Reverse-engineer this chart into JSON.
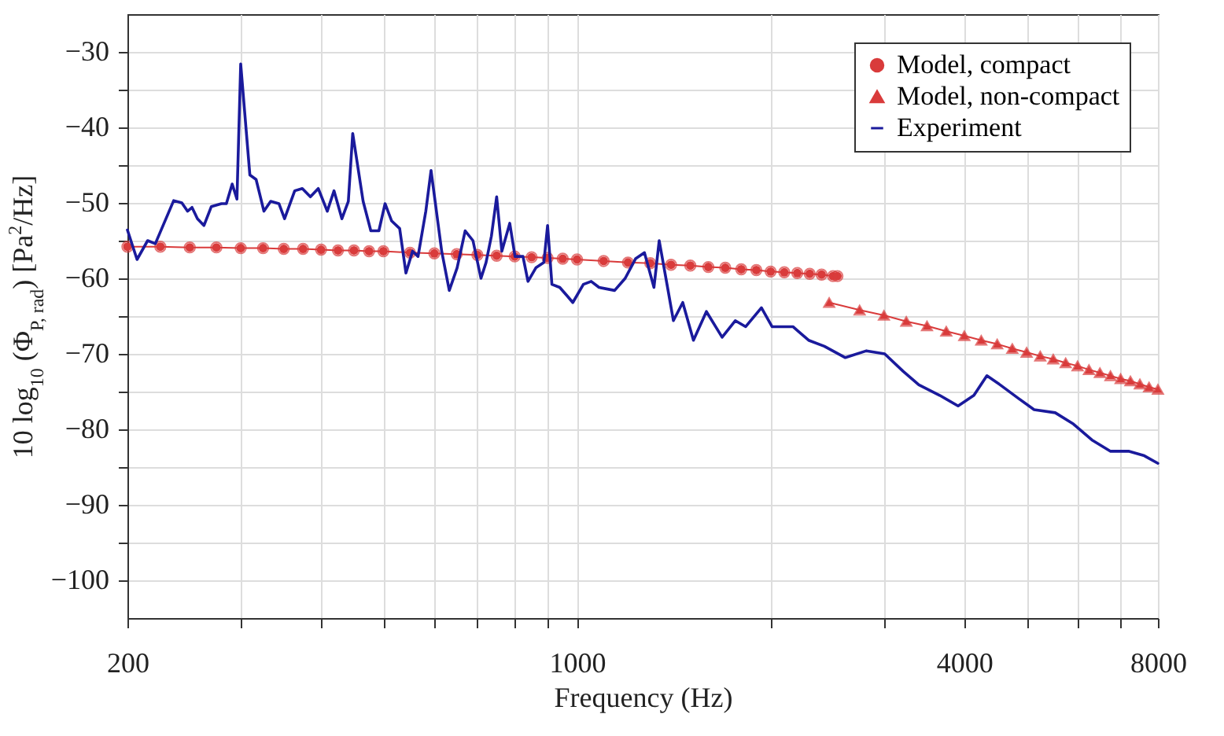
{
  "chart_data": {
    "type": "line",
    "xlabel": "Frequency (Hz)",
    "ylabel": "10 log$_{10}$ (Φ$_{P, rad}$)  [Pa$^{2}$/Hz]",
    "log": "x",
    "grid": true,
    "legend": "top right",
    "xlim": [
      200,
      8000
    ],
    "xticks": [
      200,
      {
        "value": 300,
        "label": null
      },
      {
        "value": 400,
        "label": null
      },
      {
        "value": 500,
        "label": null
      },
      {
        "value": 600,
        "label": null
      },
      {
        "value": 700,
        "label": null
      },
      {
        "value": 800,
        "label": null
      },
      {
        "value": 900,
        "label": null
      },
      1000,
      {
        "value": 2000,
        "label": null
      },
      {
        "value": 3000,
        "label": null
      },
      4000,
      {
        "value": 5000,
        "label": null
      },
      {
        "value": 6000,
        "label": null
      },
      {
        "value": 7000,
        "label": null
      },
      8000
    ],
    "ylim": [
      -105,
      -25
    ],
    "yticks": [
      -100,
      {
        "value": -95,
        "label": null
      },
      -90,
      {
        "value": -85,
        "label": null
      },
      -80,
      {
        "value": -75,
        "label": null
      },
      -70,
      {
        "value": -65,
        "label": null
      },
      -60,
      {
        "value": -55,
        "label": null
      },
      -50,
      {
        "value": -45,
        "label": null
      },
      -40,
      {
        "value": -35,
        "label": null
      },
      -30
    ],
    "series": [
      {
        "name": "Model, compact",
        "color": "#d93b3b",
        "marker": "circle",
        "x": [
          200,
          225,
          250,
          275,
          300,
          325,
          350,
          375,
          400,
          425,
          450,
          475,
          500,
          550,
          600,
          650,
          700,
          750,
          800,
          850,
          900,
          950,
          1000,
          1100,
          1200,
          1300,
          1400,
          1500,
          1600,
          1700,
          1800,
          1900,
          2000,
          2100,
          2200,
          2300,
          2400,
          2500,
          2540
        ],
        "values": [
          -55.8,
          -55.8,
          -55.9,
          -55.9,
          -56.0,
          -56.0,
          -56.1,
          -56.1,
          -56.2,
          -56.3,
          -56.3,
          -56.4,
          -56.4,
          -56.6,
          -56.7,
          -56.8,
          -56.9,
          -57.0,
          -57.1,
          -57.2,
          -57.3,
          -57.4,
          -57.5,
          -57.7,
          -57.9,
          -58.0,
          -58.2,
          -58.3,
          -58.5,
          -58.6,
          -58.8,
          -58.9,
          -59.1,
          -59.2,
          -59.3,
          -59.4,
          -59.5,
          -59.7,
          -59.7
        ]
      },
      {
        "name": "Model, non-compact",
        "color": "#d93b3b",
        "marker": "triangle",
        "x": [
          2466,
          2750,
          3000,
          3250,
          3500,
          3750,
          4000,
          4250,
          4500,
          4750,
          5000,
          5250,
          5500,
          5750,
          6000,
          6250,
          6500,
          6750,
          7000,
          7250,
          7500,
          7750,
          8000
        ],
        "values": [
          -63.2,
          -64.2,
          -64.9,
          -65.7,
          -66.3,
          -67.0,
          -67.6,
          -68.2,
          -68.7,
          -69.3,
          -69.8,
          -70.3,
          -70.7,
          -71.2,
          -71.6,
          -72.1,
          -72.5,
          -72.9,
          -73.3,
          -73.6,
          -74.0,
          -74.4,
          -74.7
        ]
      },
      {
        "name": "Experiment",
        "color": "#1a1a9c",
        "marker": "none",
        "x": [
          200,
          207,
          215,
          221,
          236,
          243,
          248,
          252,
          257,
          263,
          270,
          280,
          285,
          291,
          296,
          300,
          310,
          317,
          326,
          334,
          344,
          351,
          364,
          374,
          385,
          396,
          409,
          419,
          431,
          441,
          448,
          465,
          478,
          492,
          503,
          515,
          530,
          542,
          555,
          566,
          582,
          593,
          616,
          633,
          651,
          670,
          689,
          709,
          722,
          736,
          750,
          764,
          786,
          801,
          824,
          839,
          863,
          888,
          900,
          914,
          940,
          967,
          985,
          1023,
          1052,
          1082,
          1144,
          1188,
          1233,
          1273,
          1317,
          1342,
          1380,
          1412,
          1460,
          1517,
          1589,
          1681,
          1762,
          1829,
          1935,
          2010,
          2166,
          2291,
          2424,
          2613,
          2818,
          3008,
          3213,
          3399,
          3663,
          3912,
          4140,
          4337,
          4547,
          4855,
          5136,
          5539,
          5913,
          6315,
          6745,
          7201,
          7619,
          8000
        ],
        "values": [
          -53.6,
          -57.5,
          -55,
          -55.4,
          -49.7,
          -50,
          -51.1,
          -50.6,
          -52.1,
          -53,
          -50.5,
          -50.1,
          -50.1,
          -47.5,
          -49.5,
          -31.6,
          -46.3,
          -46.9,
          -51.1,
          -49.8,
          -50.1,
          -52.1,
          -48.4,
          -48.1,
          -49.2,
          -48.1,
          -51.1,
          -48.4,
          -52.1,
          -49.8,
          -40.8,
          -49.8,
          -53.7,
          -53.7,
          -50.1,
          -52.4,
          -53.4,
          -59.3,
          -56.4,
          -57.1,
          -51.1,
          -45.7,
          -56.4,
          -61.6,
          -58.6,
          -53.7,
          -55,
          -60,
          -57.9,
          -54.4,
          -49.2,
          -56.4,
          -52.7,
          -57.1,
          -57.1,
          -60.4,
          -58.6,
          -57.9,
          -53,
          -60.8,
          -61.2,
          -62.4,
          -63.2,
          -60.8,
          -60.4,
          -61.2,
          -61.6,
          -60,
          -57.4,
          -56.6,
          -61.2,
          -55,
          -60.8,
          -65.6,
          -63.2,
          -68.2,
          -64.4,
          -67.8,
          -65.6,
          -66.4,
          -63.9,
          -66.4,
          -66.4,
          -68.2,
          -69,
          -70.5,
          -69.6,
          -70,
          -72.3,
          -74.1,
          -75.5,
          -76.9,
          -75.5,
          -72.9,
          -74.1,
          -75.9,
          -77.4,
          -77.8,
          -79.3,
          -81.4,
          -82.9,
          -82.9,
          -83.5,
          -84.5
        ]
      }
    ]
  }
}
